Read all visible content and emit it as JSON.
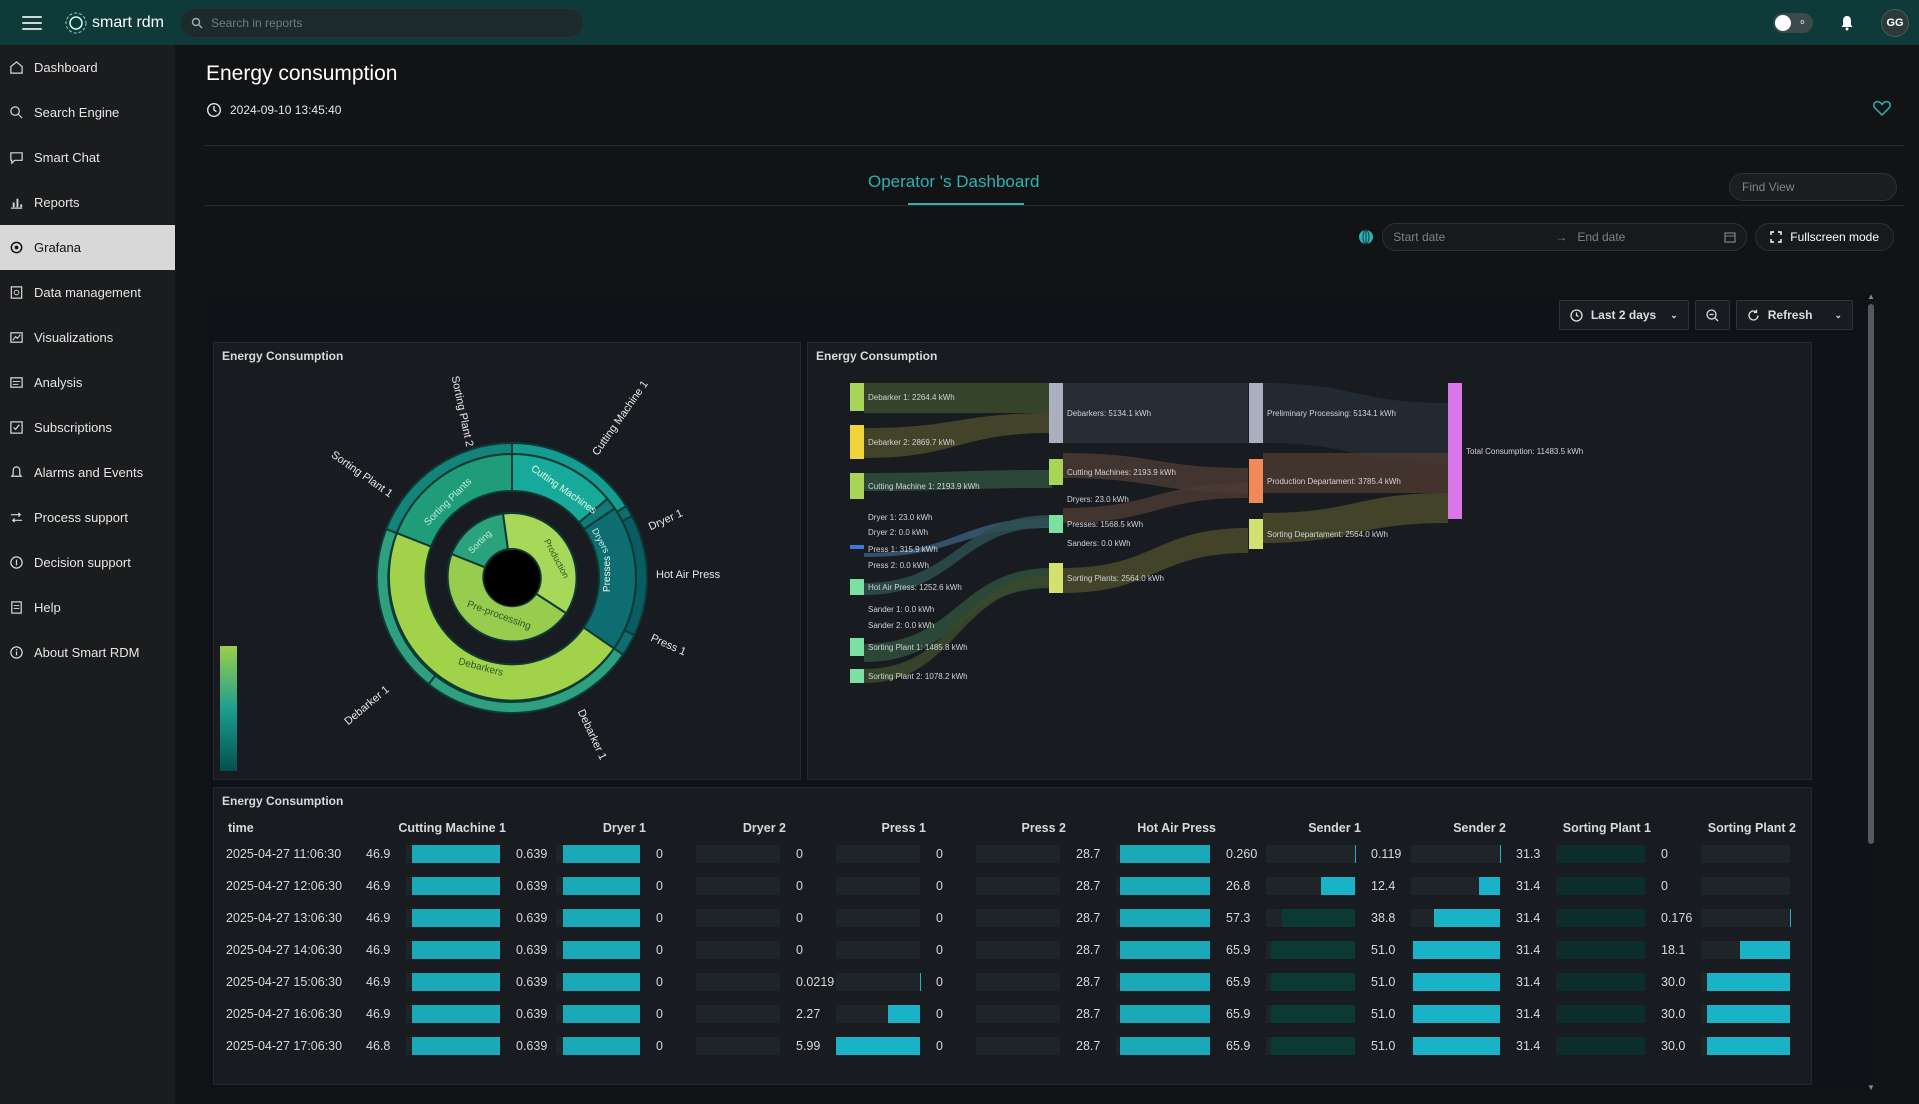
{
  "app": {
    "name": "smart rdm"
  },
  "search": {
    "placeholder": "Search in reports"
  },
  "user": {
    "initials": "GG"
  },
  "sidebar": {
    "items": [
      {
        "label": "Dashboard",
        "icon": "home-icon"
      },
      {
        "label": "Search Engine",
        "icon": "search-icon"
      },
      {
        "label": "Smart Chat",
        "icon": "chat-icon"
      },
      {
        "label": "Reports",
        "icon": "bar-chart-icon"
      },
      {
        "label": "Grafana",
        "icon": "grafana-icon",
        "active": true
      },
      {
        "label": "Data management",
        "icon": "data-icon"
      },
      {
        "label": "Visualizations",
        "icon": "visualization-icon"
      },
      {
        "label": "Analysis",
        "icon": "analysis-icon"
      },
      {
        "label": "Subscriptions",
        "icon": "subscription-icon"
      },
      {
        "label": "Alarms and Events",
        "icon": "bell-icon"
      },
      {
        "label": "Process support",
        "icon": "swap-icon"
      },
      {
        "label": "Decision support",
        "icon": "info-icon"
      },
      {
        "label": "Help",
        "icon": "help-icon"
      },
      {
        "label": "About Smart RDM",
        "icon": "info-circle-icon"
      }
    ]
  },
  "page": {
    "title": "Energy consumption",
    "timestamp": "2024-09-10 13:45:40",
    "tab": "Operator 's Dashboard",
    "find_view_placeholder": "Find View",
    "start_date_placeholder": "Start date",
    "end_date_placeholder": "End date",
    "fullscreen_label": "Fullscreen mode"
  },
  "grafana": {
    "time_range": "Last 2 days",
    "refresh_label": "Refresh"
  },
  "colors": {
    "accent": "#2bb3b3",
    "bar": "#19b2c7",
    "topbar": "#0f3a3a"
  },
  "sunburst": {
    "title": "Energy Consumption",
    "inner": [
      "Pre-processing",
      "Sorting",
      "Production"
    ],
    "middle": [
      "Debarkers",
      "Sorting Plants",
      "Cutting Machines",
      "Dryers",
      "Presses"
    ],
    "outer_labels": [
      "Debarker 1",
      "Sorting Plant 1",
      "Sorting Plant 2",
      "Cutting Machine 1",
      "Dryer 1",
      "Hot Air Press",
      "Press 1",
      "Debarker 1"
    ]
  },
  "sankey": {
    "title": "Energy Consumption",
    "sources": [
      "Debarker 1: 2264.4 kWh",
      "Debarker 2: 2869.7 kWh",
      "Cutting Machine 1: 2193.9 kWh",
      "Dryer 1: 23.0 kWh",
      "Dryer 2: 0.0 kWh",
      "Press 1: 315.9 kWh",
      "Press 2: 0.0 kWh",
      "Hot Air Press: 1252.6 kWh",
      "Sander 1: 0.0 kWh",
      "Sander 2: 0.0 kWh",
      "Sorting Plant 1: 1485.8 kWh",
      "Sorting Plant 2: 1078.2 kWh"
    ],
    "groups": [
      "Debarkers: 5134.1 kWh",
      "Cutting Machines: 2193.9 kWh",
      "Dryers: 23.0 kWh",
      "Presses: 1568.5 kWh",
      "Sanders: 0.0 kWh",
      "Sorting Plants: 2564.0 kWh"
    ],
    "departments": [
      "Preliminary Processing: 5134.1 kWh",
      "Production Departament: 3785.4 kWh",
      "Sorting Departament: 2564.0 kWh"
    ],
    "total": "Total Consumption: 11483.5 kWh"
  },
  "table": {
    "title": "Energy Consumption",
    "columns": [
      "time",
      "Cutting Machine 1",
      "Dryer 1",
      "Dryer 2",
      "Press 1",
      "Press 2",
      "Hot Air Press",
      "Sender 1",
      "Sender 2",
      "Sorting Plant 1",
      "Sorting Plant 2"
    ],
    "rows": [
      [
        "2025-04-27 11:06:30",
        "46.9",
        "0.639",
        "0",
        "0",
        "0",
        "28.7",
        "0.260",
        "0.119",
        "31.3",
        "0"
      ],
      [
        "2025-04-27 12:06:30",
        "46.9",
        "0.639",
        "0",
        "0",
        "0",
        "28.7",
        "26.8",
        "12.4",
        "31.4",
        "0"
      ],
      [
        "2025-04-27 13:06:30",
        "46.9",
        "0.639",
        "0",
        "0",
        "0",
        "28.7",
        "57.3",
        "38.8",
        "31.4",
        "0.176"
      ],
      [
        "2025-04-27 14:06:30",
        "46.9",
        "0.639",
        "0",
        "0",
        "0",
        "28.7",
        "65.9",
        "51.0",
        "31.4",
        "18.1"
      ],
      [
        "2025-04-27 15:06:30",
        "46.9",
        "0.639",
        "0",
        "0.0219",
        "0",
        "28.7",
        "65.9",
        "51.0",
        "31.4",
        "30.0"
      ],
      [
        "2025-04-27 16:06:30",
        "46.9",
        "0.639",
        "0",
        "2.27",
        "0",
        "28.7",
        "65.9",
        "51.0",
        "31.4",
        "30.0"
      ],
      [
        "2025-04-27 17:06:30",
        "46.8",
        "0.639",
        "0",
        "5.99",
        "0",
        "28.7",
        "65.9",
        "51.0",
        "31.4",
        "30.0"
      ]
    ]
  }
}
